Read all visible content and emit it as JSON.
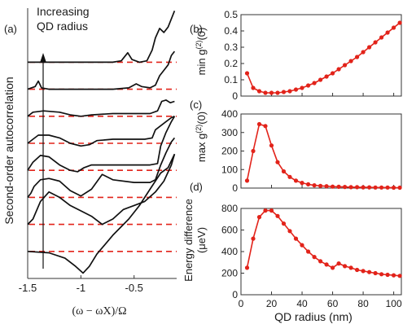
{
  "figure": {
    "panel_labels": [
      "(a)",
      "(b)",
      "(c)",
      "(d)"
    ],
    "annotation": [
      "Increasing",
      "QD radius"
    ]
  },
  "chart_data": [
    {
      "panel": "(a)",
      "type": "line",
      "xlabel": "(ω − ωX)/Ω",
      "ylabel": "Second-order autocorrelation",
      "xticks": [
        -1.5,
        -1,
        -0.5
      ],
      "xtick_labels": [
        "-1.5",
        "-1",
        "-0.5"
      ],
      "xlim": [
        -1.5,
        -0.1
      ],
      "ylim": [
        0,
        10
      ],
      "baseline_levels": [
        1.0,
        2.0,
        3.0,
        4.0,
        5.0,
        6.0,
        7.0,
        8.0
      ],
      "baseline_color": "#e2231a",
      "curve_color": "#111111",
      "series": [
        {
          "offset": 1.0,
          "points": [
            [
              -1.5,
              1.0
            ],
            [
              -1.3,
              0.95
            ],
            [
              -1.15,
              0.75
            ],
            [
              -1.05,
              0.45
            ],
            [
              -0.98,
              0.2
            ],
            [
              -0.92,
              0.45
            ],
            [
              -0.85,
              0.9
            ],
            [
              -0.7,
              1.6
            ],
            [
              -0.55,
              2.2
            ],
            [
              -0.45,
              2.7
            ],
            [
              -0.35,
              3.3
            ],
            [
              -0.25,
              3.9
            ],
            [
              -0.18,
              4.1
            ],
            [
              -0.12,
              4.6
            ]
          ]
        },
        {
          "offset": 2.0,
          "points": [
            [
              -1.5,
              2.0
            ],
            [
              -1.45,
              2.2
            ],
            [
              -1.38,
              2.85
            ],
            [
              -1.3,
              3.2
            ],
            [
              -1.2,
              3.0
            ],
            [
              -1.1,
              2.7
            ],
            [
              -1.0,
              2.5
            ],
            [
              -0.9,
              2.3
            ],
            [
              -0.8,
              2.0
            ],
            [
              -0.7,
              2.2
            ],
            [
              -0.6,
              2.55
            ],
            [
              -0.5,
              2.7
            ],
            [
              -0.4,
              2.85
            ],
            [
              -0.3,
              3.2
            ],
            [
              -0.22,
              3.6
            ],
            [
              -0.15,
              4.2
            ],
            [
              -0.12,
              4.6
            ]
          ]
        },
        {
          "offset": 3.0,
          "points": [
            [
              -1.5,
              3.0
            ],
            [
              -1.47,
              3.15
            ],
            [
              -1.44,
              3.4
            ],
            [
              -1.38,
              3.65
            ],
            [
              -1.3,
              3.7
            ],
            [
              -1.2,
              3.6
            ],
            [
              -1.1,
              3.25
            ],
            [
              -1.0,
              3.05
            ],
            [
              -0.9,
              3.3
            ],
            [
              -0.8,
              3.85
            ],
            [
              -0.7,
              3.65
            ],
            [
              -0.5,
              3.55
            ],
            [
              -0.35,
              3.55
            ],
            [
              -0.3,
              3.65
            ],
            [
              -0.25,
              4.2
            ],
            [
              -0.2,
              4.65
            ],
            [
              -0.15,
              5.05
            ],
            [
              -0.12,
              5.2
            ]
          ]
        },
        {
          "offset": 4.0,
          "points": [
            [
              -1.5,
              4.0
            ],
            [
              -1.45,
              4.3
            ],
            [
              -1.38,
              4.55
            ],
            [
              -1.3,
              4.5
            ],
            [
              -1.2,
              4.2
            ],
            [
              -1.1,
              4.0
            ],
            [
              -1.03,
              3.95
            ],
            [
              -0.97,
              4.1
            ],
            [
              -0.9,
              4.2
            ],
            [
              -0.7,
              4.2
            ],
            [
              -0.5,
              4.2
            ],
            [
              -0.35,
              4.2
            ],
            [
              -0.28,
              4.25
            ],
            [
              -0.25,
              4.9
            ],
            [
              -0.2,
              5.4
            ],
            [
              -0.15,
              5.8
            ],
            [
              -0.12,
              6.0
            ]
          ]
        },
        {
          "offset": 5.0,
          "points": [
            [
              -1.5,
              5.0
            ],
            [
              -1.45,
              5.15
            ],
            [
              -1.4,
              5.3
            ],
            [
              -1.3,
              5.3
            ],
            [
              -1.2,
              5.2
            ],
            [
              -1.1,
              5.0
            ],
            [
              -1.0,
              4.9
            ],
            [
              -0.92,
              4.95
            ],
            [
              -0.85,
              5.1
            ],
            [
              -0.7,
              5.15
            ],
            [
              -0.5,
              5.15
            ],
            [
              -0.4,
              5.15
            ],
            [
              -0.33,
              5.2
            ],
            [
              -0.3,
              5.5
            ],
            [
              -0.25,
              5.65
            ],
            [
              -0.2,
              5.8
            ],
            [
              -0.15,
              5.95
            ],
            [
              -0.12,
              6.0
            ]
          ]
        },
        {
          "offset": 6.0,
          "points": [
            [
              -1.5,
              6.0
            ],
            [
              -1.45,
              6.15
            ],
            [
              -1.35,
              6.2
            ],
            [
              -1.2,
              6.15
            ],
            [
              -1.1,
              6.05
            ],
            [
              -1.0,
              6.0
            ],
            [
              -0.9,
              6.05
            ],
            [
              -0.7,
              6.1
            ],
            [
              -0.5,
              6.1
            ],
            [
              -0.35,
              6.1
            ],
            [
              -0.28,
              6.2
            ],
            [
              -0.24,
              6.55
            ],
            [
              -0.2,
              6.6
            ],
            [
              -0.16,
              6.5
            ],
            [
              -0.12,
              6.55
            ]
          ]
        },
        {
          "offset": 7.0,
          "points": [
            [
              -1.5,
              7.0
            ],
            [
              -1.43,
              7.1
            ],
            [
              -1.4,
              7.3
            ],
            [
              -1.37,
              7.05
            ],
            [
              -1.3,
              7.0
            ],
            [
              -1.1,
              7.0
            ],
            [
              -0.9,
              7.0
            ],
            [
              -0.7,
              7.0
            ],
            [
              -0.55,
              7.05
            ],
            [
              -0.48,
              7.2
            ],
            [
              -0.43,
              7.1
            ],
            [
              -0.35,
              7.05
            ],
            [
              -0.3,
              7.15
            ],
            [
              -0.26,
              7.5
            ],
            [
              -0.22,
              7.7
            ],
            [
              -0.18,
              7.9
            ],
            [
              -0.15,
              8.25
            ],
            [
              -0.12,
              8.4
            ]
          ]
        },
        {
          "offset": 8.0,
          "points": [
            [
              -1.5,
              8.0
            ],
            [
              -1.3,
              8.0
            ],
            [
              -1.1,
              8.0
            ],
            [
              -0.9,
              8.0
            ],
            [
              -0.7,
              8.0
            ],
            [
              -0.62,
              8.05
            ],
            [
              -0.56,
              8.35
            ],
            [
              -0.52,
              8.1
            ],
            [
              -0.45,
              8.0
            ],
            [
              -0.38,
              8.05
            ],
            [
              -0.33,
              8.45
            ],
            [
              -0.3,
              8.9
            ],
            [
              -0.26,
              9.25
            ],
            [
              -0.22,
              9.1
            ],
            [
              -0.18,
              9.3
            ],
            [
              -0.12,
              9.9
            ]
          ]
        }
      ]
    },
    {
      "panel": "(b)",
      "type": "line",
      "xlabel": "",
      "ylabel": "min g(2)(0)",
      "ylabel_parts": [
        "min g",
        "(2)",
        "(0)"
      ],
      "xlim": [
        0,
        105
      ],
      "ylim": [
        0,
        0.5
      ],
      "xticks": [
        0,
        20,
        40,
        60,
        80,
        100
      ],
      "yticks": [
        0,
        0.1,
        0.2,
        0.3,
        0.4,
        0.5
      ],
      "ytick_labels": [
        "0",
        "0.1",
        "0.2",
        "0.3",
        "0.4",
        "0.5"
      ],
      "color": "#e2231a",
      "x": [
        4,
        8,
        12,
        16,
        20,
        24,
        28,
        32,
        36,
        40,
        44,
        48,
        52,
        56,
        60,
        64,
        68,
        72,
        76,
        80,
        84,
        88,
        92,
        96,
        100,
        104
      ],
      "y": [
        0.14,
        0.05,
        0.03,
        0.02,
        0.02,
        0.02,
        0.025,
        0.03,
        0.04,
        0.05,
        0.065,
        0.08,
        0.1,
        0.12,
        0.14,
        0.165,
        0.19,
        0.215,
        0.24,
        0.27,
        0.3,
        0.33,
        0.36,
        0.39,
        0.42,
        0.45
      ]
    },
    {
      "panel": "(c)",
      "type": "line",
      "xlabel": "",
      "ylabel": "max g(2)(0)",
      "ylabel_parts": [
        "max g",
        "(2)",
        "(0)"
      ],
      "xlim": [
        0,
        105
      ],
      "ylim": [
        0,
        400
      ],
      "xticks": [
        0,
        20,
        40,
        60,
        80,
        100
      ],
      "yticks": [
        0,
        100,
        200,
        300,
        400
      ],
      "ytick_labels": [
        "0",
        "100",
        "200",
        "300",
        "400"
      ],
      "color": "#e2231a",
      "x": [
        4,
        8,
        12,
        16,
        20,
        24,
        28,
        32,
        36,
        40,
        44,
        48,
        52,
        56,
        60,
        64,
        68,
        72,
        76,
        80,
        84,
        88,
        92,
        96,
        100,
        104
      ],
      "y": [
        40,
        200,
        345,
        335,
        230,
        140,
        90,
        60,
        40,
        28,
        20,
        15,
        12,
        10,
        8,
        7,
        6,
        5,
        5,
        4,
        4,
        3,
        3,
        3,
        2,
        2
      ]
    },
    {
      "panel": "(d)",
      "type": "line",
      "xlabel": "QD radius (nm)",
      "ylabel": "Energy difference (μeV)",
      "ylabel_lines": [
        "Energy difference",
        "(μeV)"
      ],
      "xlim": [
        0,
        105
      ],
      "ylim": [
        0,
        800
      ],
      "xticks": [
        0,
        20,
        40,
        60,
        80,
        100
      ],
      "xtick_labels": [
        "0",
        "20",
        "40",
        "60",
        "80",
        "100"
      ],
      "yticks": [
        0,
        200,
        400,
        600,
        800
      ],
      "ytick_labels": [
        "0",
        "200",
        "400",
        "600",
        "800"
      ],
      "color": "#e2231a",
      "x": [
        4,
        8,
        12,
        16,
        20,
        24,
        28,
        32,
        36,
        40,
        44,
        48,
        52,
        56,
        60,
        64,
        68,
        72,
        76,
        80,
        84,
        88,
        92,
        96,
        100,
        104
      ],
      "y": [
        250,
        520,
        720,
        780,
        780,
        730,
        660,
        590,
        520,
        460,
        400,
        350,
        310,
        280,
        250,
        290,
        265,
        250,
        230,
        220,
        210,
        200,
        190,
        185,
        180,
        175
      ]
    }
  ]
}
